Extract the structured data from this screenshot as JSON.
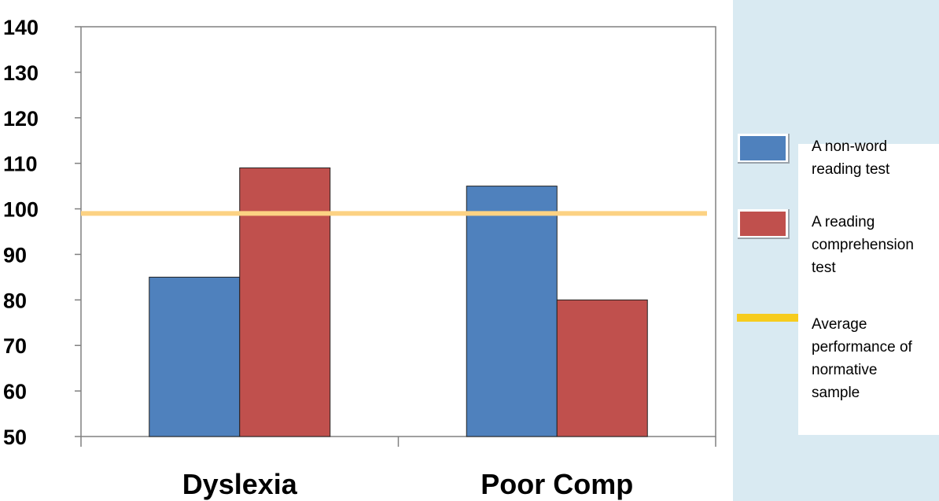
{
  "chart_data": {
    "type": "bar",
    "categories": [
      "Dyslexia",
      "Poor Comp"
    ],
    "series": [
      {
        "name": "A non-word reading test",
        "values": [
          85,
          105
        ],
        "color": "#4f81bd"
      },
      {
        "name": "A reading comprehension test",
        "values": [
          109,
          80
        ],
        "color": "#c0504d"
      }
    ],
    "reference_line": {
      "name": "Average performance of normative sample",
      "value": 99,
      "color": "#fcd283"
    },
    "yticks": [
      "50",
      "60",
      "70",
      "80",
      "90",
      "100",
      "110",
      "120",
      "130",
      "140"
    ],
    "ylim": [
      50,
      140
    ],
    "title": "",
    "xlabel": "",
    "ylabel": "",
    "grid": false,
    "legend_position": "right"
  },
  "legend": {
    "items": [
      {
        "label_lines": [
          "A non-word",
          "reading test"
        ],
        "color": "#4f81bd"
      },
      {
        "label_lines": [
          "A reading",
          "comprehension",
          "test"
        ],
        "color": "#c0504d"
      },
      {
        "label_lines": [
          "Average",
          "performance of",
          "normative",
          "sample"
        ],
        "color": "#f6cc1e"
      }
    ]
  }
}
